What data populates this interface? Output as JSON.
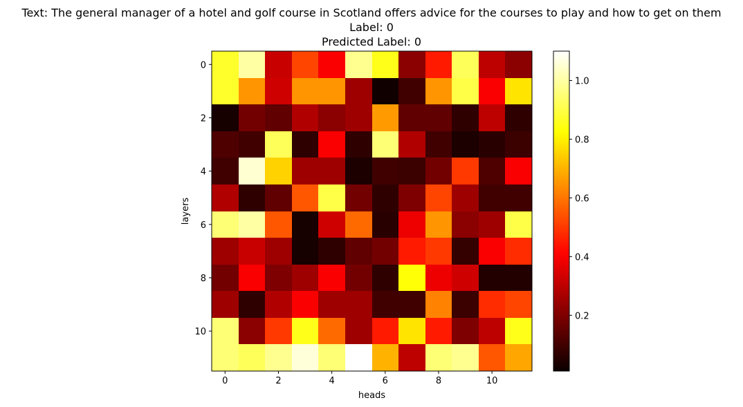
{
  "figure": {
    "title_line1": "Text: The general manager of a hotel and golf course in Scotland offers advice for the courses to play and how to get on them",
    "title_line2": "Label: 0",
    "title_line3": "Predicted Label: 0"
  },
  "chart_data": {
    "type": "heatmap",
    "title": "Text: The general manager of a hotel and golf course in Scotland offers advice for the courses to play and how to get on them\nLabel: 0\nPredicted Label: 0",
    "xlabel": "heads",
    "ylabel": "layers",
    "colormap": "hot",
    "x_ticks": [
      0,
      2,
      4,
      6,
      8,
      10
    ],
    "y_ticks": [
      0,
      2,
      4,
      6,
      8,
      10
    ],
    "colorbar": {
      "vmin": 0.01,
      "vmax": 1.1,
      "ticks": [
        0.2,
        0.4,
        0.6,
        0.8,
        1.0
      ],
      "tick_labels": [
        "0.2",
        "0.4",
        "0.6",
        "0.8",
        "1.0"
      ]
    },
    "values": [
      [
        0.87,
        1.0,
        0.32,
        0.52,
        0.4,
        0.98,
        0.85,
        0.22,
        0.45,
        0.92,
        0.3,
        0.22
      ],
      [
        0.87,
        0.65,
        0.33,
        0.65,
        0.65,
        0.25,
        0.02,
        0.1,
        0.65,
        0.9,
        0.4,
        0.78
      ],
      [
        0.03,
        0.18,
        0.15,
        0.28,
        0.22,
        0.25,
        0.66,
        0.15,
        0.15,
        0.07,
        0.3,
        0.07
      ],
      [
        0.12,
        0.1,
        0.92,
        0.07,
        0.4,
        0.07,
        0.95,
        0.28,
        0.1,
        0.04,
        0.06,
        0.09
      ],
      [
        0.1,
        1.05,
        0.75,
        0.25,
        0.25,
        0.04,
        0.1,
        0.09,
        0.18,
        0.5,
        0.12,
        0.4
      ],
      [
        0.28,
        0.07,
        0.15,
        0.55,
        0.9,
        0.18,
        0.07,
        0.2,
        0.52,
        0.25,
        0.1,
        0.1
      ],
      [
        0.95,
        1.0,
        0.55,
        0.03,
        0.33,
        0.58,
        0.06,
        0.38,
        0.65,
        0.22,
        0.25,
        0.9
      ],
      [
        0.25,
        0.32,
        0.25,
        0.03,
        0.07,
        0.15,
        0.18,
        0.45,
        0.5,
        0.08,
        0.4,
        0.48
      ],
      [
        0.18,
        0.4,
        0.2,
        0.25,
        0.4,
        0.18,
        0.07,
        0.83,
        0.38,
        0.33,
        0.05,
        0.05
      ],
      [
        0.25,
        0.07,
        0.28,
        0.4,
        0.25,
        0.25,
        0.1,
        0.1,
        0.62,
        0.09,
        0.48,
        0.52
      ],
      [
        0.95,
        0.22,
        0.5,
        0.85,
        0.58,
        0.25,
        0.45,
        0.78,
        0.45,
        0.2,
        0.3,
        0.85
      ],
      [
        0.95,
        0.92,
        0.98,
        1.06,
        0.95,
        1.1,
        0.7,
        0.3,
        0.95,
        0.98,
        0.55,
        0.68
      ]
    ]
  }
}
